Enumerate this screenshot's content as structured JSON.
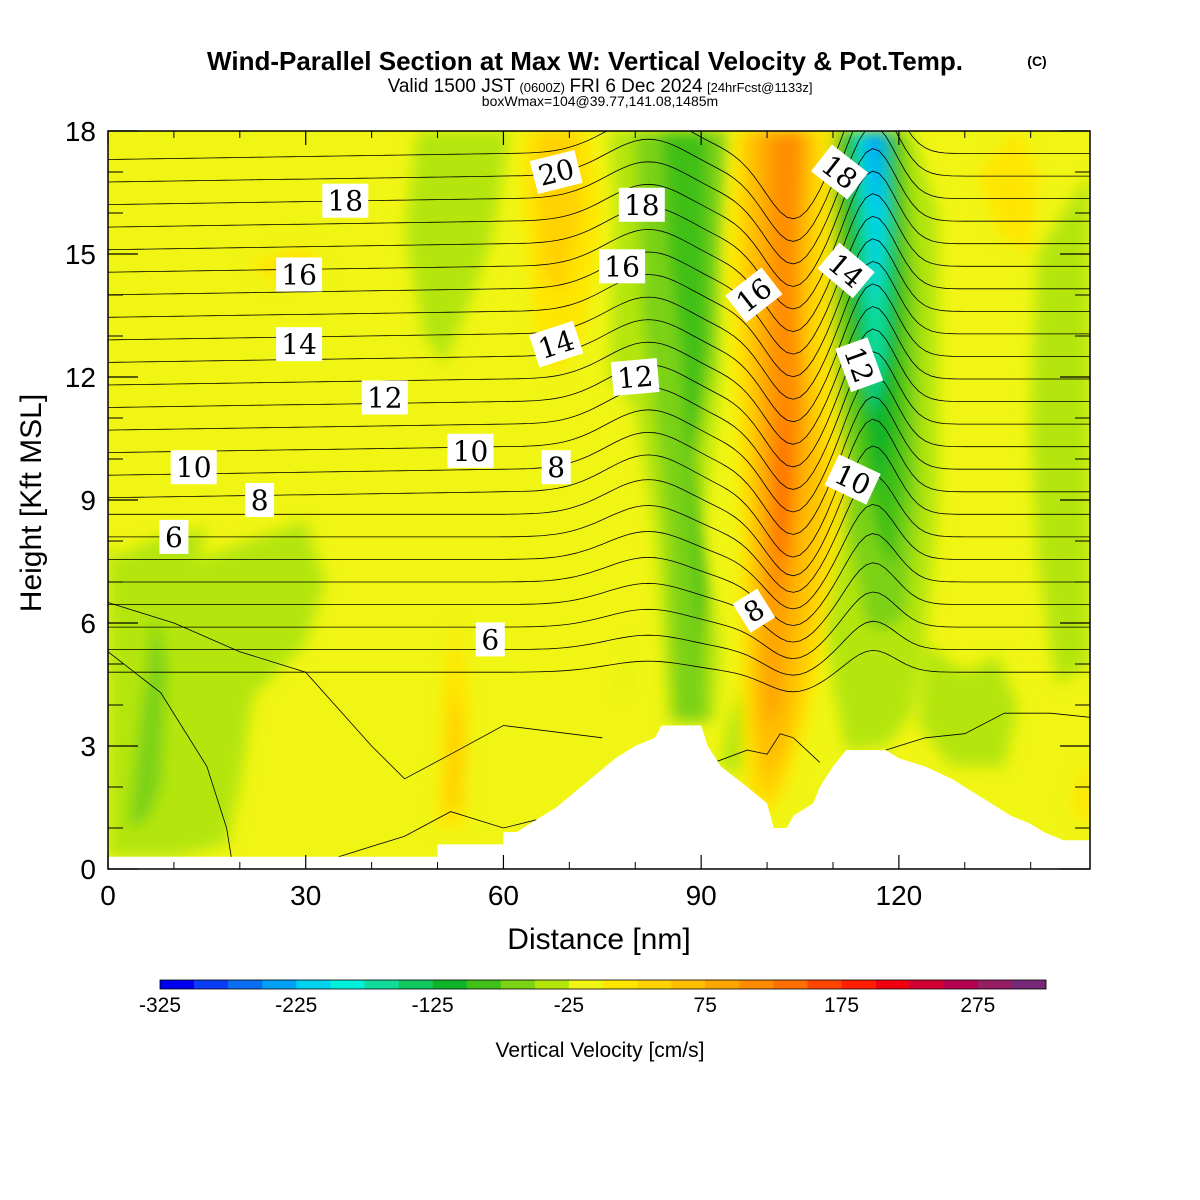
{
  "title": {
    "main": "Wind-Parallel Section at Max W: Vertical Velocity & Pot.Temp.",
    "copyright": "(C)",
    "valid_prefix": "Valid 1500 JST",
    "valid_utc": "(0600Z)",
    "valid_date": "FRI 6 Dec 2024",
    "forecast": "[24hrFcst@1133z]",
    "box_info": "boxWmax=104@39.77,141.08,1485m"
  },
  "chart_data": {
    "type": "heatmap",
    "xlabel": "Distance [nm]",
    "ylabel": "Height [Kft MSL]",
    "xlim": [
      0,
      149
    ],
    "ylim": [
      0,
      18
    ],
    "x_ticks": [
      0,
      30,
      60,
      90,
      120
    ],
    "y_ticks": [
      0,
      3,
      6,
      9,
      12,
      15,
      18
    ],
    "colorbar": {
      "title": "Vertical Velocity [cm/s]",
      "min": -325,
      "max": 325,
      "step": 25,
      "tick_values": [
        -325,
        -225,
        -125,
        -25,
        75,
        175,
        275
      ],
      "colors": [
        "#0000f0",
        "#0a3cf5",
        "#0a6ef5",
        "#00a0f5",
        "#00d2f0",
        "#00f0dc",
        "#10dc9c",
        "#10c860",
        "#10b428",
        "#40c018",
        "#7cd214",
        "#b4e60a",
        "#f0f514",
        "#ffe600",
        "#ffd200",
        "#ffbe00",
        "#ffa500",
        "#ff8c00",
        "#ff6e00",
        "#ff4600",
        "#ff1e00",
        "#f00010",
        "#d20030",
        "#b4004e",
        "#961e64",
        "#782878"
      ]
    },
    "contour_field": "Potential Temperature",
    "contour_labels": [
      {
        "text": "20",
        "x": 68,
        "y": 17.0,
        "rot": -14
      },
      {
        "text": "18",
        "x": 36,
        "y": 16.3,
        "rot": 0
      },
      {
        "text": "18",
        "x": 81,
        "y": 16.2,
        "rot": 0
      },
      {
        "text": "18",
        "x": 111,
        "y": 17.0,
        "rot": 38
      },
      {
        "text": "16",
        "x": 29,
        "y": 14.5,
        "rot": 0
      },
      {
        "text": "16",
        "x": 78,
        "y": 14.7,
        "rot": 0
      },
      {
        "text": "16",
        "x": 98,
        "y": 14.0,
        "rot": -38
      },
      {
        "text": "14",
        "x": 112,
        "y": 14.6,
        "rot": 40
      },
      {
        "text": "14",
        "x": 29,
        "y": 12.8,
        "rot": 0
      },
      {
        "text": "14",
        "x": 68,
        "y": 12.8,
        "rot": -18
      },
      {
        "text": "12",
        "x": 80,
        "y": 12.0,
        "rot": -5
      },
      {
        "text": "12",
        "x": 114,
        "y": 12.3,
        "rot": 70
      },
      {
        "text": "12",
        "x": 42,
        "y": 11.5,
        "rot": 0
      },
      {
        "text": "10",
        "x": 55,
        "y": 10.2,
        "rot": 0
      },
      {
        "text": "10",
        "x": 13,
        "y": 9.8,
        "rot": 0
      },
      {
        "text": "10",
        "x": 113,
        "y": 9.5,
        "rot": 25
      },
      {
        "text": "8",
        "x": 68,
        "y": 9.8,
        "rot": 0
      },
      {
        "text": "8",
        "x": 23,
        "y": 9.0,
        "rot": 0
      },
      {
        "text": "8",
        "x": 98,
        "y": 6.3,
        "rot": -32
      },
      {
        "text": "6",
        "x": 10,
        "y": 8.1,
        "rot": 0
      },
      {
        "text": "6",
        "x": 58,
        "y": 5.6,
        "rot": 0
      }
    ],
    "terrain_kft": [
      [
        0,
        0.3
      ],
      [
        50,
        0.3
      ],
      [
        50,
        0.6
      ],
      [
        60,
        0.6
      ],
      [
        60,
        0.9
      ],
      [
        62,
        0.9
      ],
      [
        65,
        1.2
      ],
      [
        68,
        1.5
      ],
      [
        71,
        1.9
      ],
      [
        74,
        2.3
      ],
      [
        77,
        2.7
      ],
      [
        80,
        3.0
      ],
      [
        83,
        3.2
      ],
      [
        84,
        3.5
      ],
      [
        90,
        3.5
      ],
      [
        91,
        3.0
      ],
      [
        93,
        2.5
      ],
      [
        97,
        2.0
      ],
      [
        100,
        1.6
      ],
      [
        101,
        1.0
      ],
      [
        103,
        1.0
      ],
      [
        104,
        1.3
      ],
      [
        107,
        1.6
      ],
      [
        108,
        2.0
      ],
      [
        110,
        2.5
      ],
      [
        111,
        2.7
      ],
      [
        112,
        2.9
      ],
      [
        118,
        2.9
      ],
      [
        120,
        2.7
      ],
      [
        124,
        2.5
      ],
      [
        128,
        2.2
      ],
      [
        131,
        1.9
      ],
      [
        134,
        1.6
      ],
      [
        137,
        1.3
      ],
      [
        140,
        1.1
      ],
      [
        142,
        0.9
      ],
      [
        145,
        0.7
      ],
      [
        149,
        0.7
      ]
    ]
  }
}
